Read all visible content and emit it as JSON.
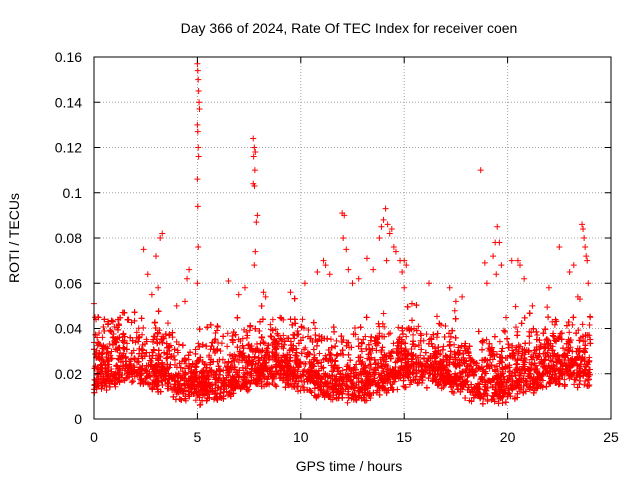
{
  "chart_data": {
    "type": "scatter",
    "title": "Day 366 of 2024, Rate Of TEC Index for receiver coen",
    "xlabel": "GPS time / hours",
    "ylabel": "ROTI / TECUs",
    "xlim": [
      0,
      25
    ],
    "ylim": [
      0,
      0.16
    ],
    "x_ticks": [
      "0",
      "5",
      "10",
      "15",
      "20",
      "25"
    ],
    "y_ticks": [
      "0",
      "0.02",
      "0.04",
      "0.06",
      "0.08",
      "0.1",
      "0.12",
      "0.14",
      "0.16"
    ],
    "grid": true,
    "marker": "+",
    "color": "#ff0000",
    "series": [
      {
        "name": "ROTI",
        "note": "dense cloud of roughly 0.005-0.045 TECU/s over 0-24 h plus notable spikes",
        "points": [
          [
            0.0,
            0.051
          ],
          [
            0.05,
            0.045
          ],
          [
            0.1,
            0.044
          ],
          [
            0.15,
            0.036
          ],
          [
            1.2,
            0.042
          ],
          [
            2.4,
            0.075
          ],
          [
            2.6,
            0.064
          ],
          [
            2.8,
            0.055
          ],
          [
            3.0,
            0.072
          ],
          [
            3.2,
            0.08
          ],
          [
            3.3,
            0.082
          ],
          [
            3.1,
            0.058
          ],
          [
            4.0,
            0.05
          ],
          [
            4.5,
            0.062
          ],
          [
            4.6,
            0.066
          ],
          [
            4.4,
            0.052
          ],
          [
            5.0,
            0.157
          ],
          [
            5.02,
            0.154
          ],
          [
            5.04,
            0.15
          ],
          [
            5.06,
            0.145
          ],
          [
            5.08,
            0.14
          ],
          [
            5.1,
            0.137
          ],
          [
            5.0,
            0.13
          ],
          [
            5.02,
            0.127
          ],
          [
            5.04,
            0.12
          ],
          [
            5.06,
            0.116
          ],
          [
            5.0,
            0.106
          ],
          [
            5.02,
            0.094
          ],
          [
            5.04,
            0.076
          ],
          [
            5.0,
            0.06
          ],
          [
            6.5,
            0.061
          ],
          [
            7.0,
            0.055
          ],
          [
            7.3,
            0.058
          ],
          [
            7.7,
            0.124
          ],
          [
            7.75,
            0.12
          ],
          [
            7.8,
            0.118
          ],
          [
            7.72,
            0.116
          ],
          [
            7.78,
            0.11
          ],
          [
            7.7,
            0.104
          ],
          [
            7.76,
            0.103
          ],
          [
            7.9,
            0.09
          ],
          [
            7.85,
            0.087
          ],
          [
            7.8,
            0.074
          ],
          [
            7.75,
            0.068
          ],
          [
            8.2,
            0.056
          ],
          [
            8.3,
            0.054
          ],
          [
            9.5,
            0.056
          ],
          [
            10.2,
            0.06
          ],
          [
            10.8,
            0.065
          ],
          [
            11.1,
            0.07
          ],
          [
            11.2,
            0.068
          ],
          [
            11.4,
            0.064
          ],
          [
            12.0,
            0.091
          ],
          [
            12.1,
            0.09
          ],
          [
            12.05,
            0.08
          ],
          [
            12.2,
            0.075
          ],
          [
            12.3,
            0.066
          ],
          [
            12.5,
            0.06
          ],
          [
            12.8,
            0.062
          ],
          [
            13.2,
            0.071
          ],
          [
            13.5,
            0.066
          ],
          [
            13.8,
            0.08
          ],
          [
            13.9,
            0.085
          ],
          [
            14.0,
            0.088
          ],
          [
            14.1,
            0.093
          ],
          [
            14.2,
            0.086
          ],
          [
            14.3,
            0.082
          ],
          [
            14.4,
            0.084
          ],
          [
            14.5,
            0.076
          ],
          [
            14.6,
            0.074
          ],
          [
            14.15,
            0.07
          ],
          [
            14.8,
            0.07
          ],
          [
            14.9,
            0.065
          ],
          [
            15.0,
            0.07
          ],
          [
            15.1,
            0.068
          ],
          [
            15.0,
            0.058
          ],
          [
            16.2,
            0.06
          ],
          [
            17.2,
            0.058
          ],
          [
            17.5,
            0.052
          ],
          [
            17.8,
            0.054
          ],
          [
            18.7,
            0.11
          ],
          [
            18.9,
            0.069
          ],
          [
            19.0,
            0.06
          ],
          [
            19.3,
            0.072
          ],
          [
            19.4,
            0.078
          ],
          [
            19.5,
            0.085
          ],
          [
            19.6,
            0.078
          ],
          [
            19.7,
            0.068
          ],
          [
            19.45,
            0.064
          ],
          [
            20.2,
            0.07
          ],
          [
            20.5,
            0.07
          ],
          [
            20.6,
            0.068
          ],
          [
            20.8,
            0.062
          ],
          [
            21.2,
            0.05
          ],
          [
            22.0,
            0.058
          ],
          [
            22.5,
            0.076
          ],
          [
            23.0,
            0.065
          ],
          [
            23.2,
            0.068
          ],
          [
            23.4,
            0.054
          ],
          [
            23.5,
            0.053
          ],
          [
            23.6,
            0.086
          ],
          [
            23.65,
            0.084
          ],
          [
            23.7,
            0.08
          ],
          [
            23.75,
            0.076
          ],
          [
            23.8,
            0.072
          ],
          [
            23.85,
            0.07
          ],
          [
            23.9,
            0.06
          ],
          [
            24.0,
            0.045
          ]
        ]
      }
    ]
  }
}
